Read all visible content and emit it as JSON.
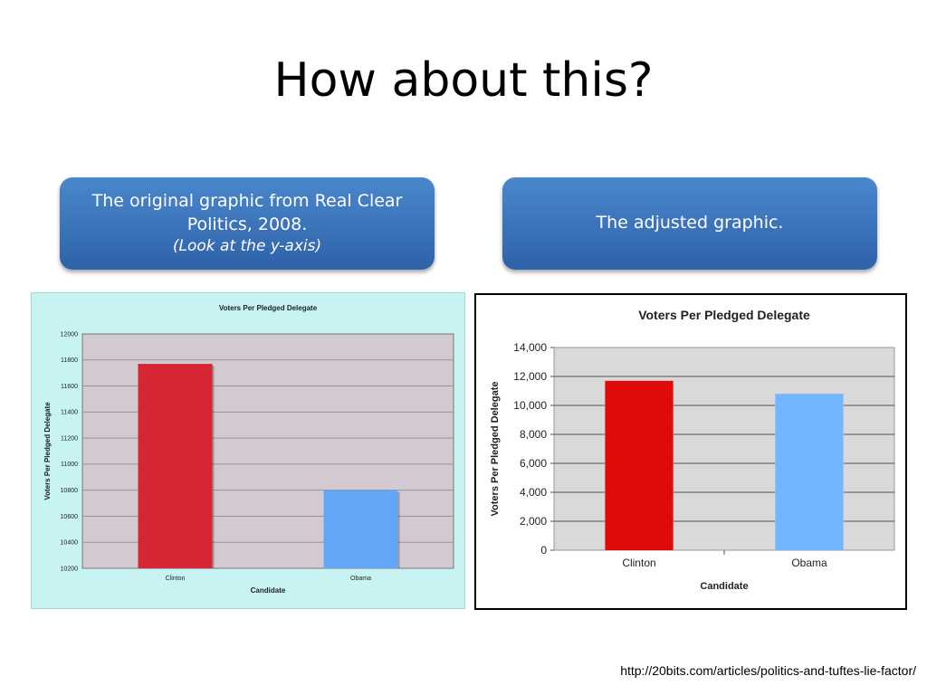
{
  "slide": {
    "title": "How about this?",
    "left_callout": {
      "line1": "The original graphic from Real Clear Politics, 2008.",
      "line2": "(Look at the y-axis)"
    },
    "right_callout": {
      "line1": "The adjusted graphic."
    },
    "source": "http://20bits.com/articles/politics-and-tuftes-lie-factor/"
  },
  "chart_data": [
    {
      "type": "bar",
      "title": "Voters Per Pledged Delegate",
      "xlabel": "Candidate",
      "ylabel": "Voters Per Pledged Delegate",
      "categories": [
        "Clinton",
        "Obama"
      ],
      "values": [
        11770,
        10800
      ],
      "colors": [
        "#d62634",
        "#63a5f6"
      ],
      "ylim": [
        10200,
        12000
      ],
      "yticks": [
        "10200",
        "10400",
        "10600",
        "10800",
        "11000",
        "11200",
        "11400",
        "11600",
        "11800",
        "12000"
      ],
      "grid": true,
      "plot_background": "#d3c9d0",
      "background": "#c8f3f3"
    },
    {
      "type": "bar",
      "title": "Voters Per Pledged Delegate",
      "xlabel": "Candidate",
      "ylabel": "Voters Per Pledged Delegate",
      "categories": [
        "Clinton",
        "Obama"
      ],
      "values": [
        11700,
        10800
      ],
      "colors": [
        "#e10a0a",
        "#72b6ff"
      ],
      "ylim": [
        0,
        14000
      ],
      "yticks": [
        "0",
        "2,000",
        "4,000",
        "6,000",
        "8,000",
        "10,000",
        "12,000",
        "14,000"
      ],
      "grid": true,
      "plot_background": "#d9d9d9",
      "background": "#ffffff"
    }
  ]
}
